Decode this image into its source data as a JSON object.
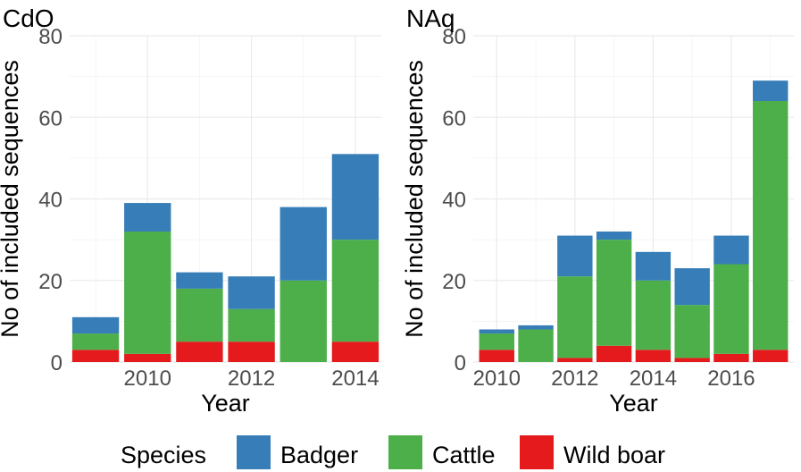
{
  "legend": {
    "title": "Species",
    "items": [
      {
        "label": "Badger",
        "color": "#377EB8"
      },
      {
        "label": "Cattle",
        "color": "#4DAF4A"
      },
      {
        "label": "Wild boar",
        "color": "#E41A1C"
      }
    ]
  },
  "chart_data": [
    {
      "type": "bar",
      "stacked": true,
      "title": "CdO",
      "xlabel": "Year",
      "ylabel": "No of included sequences",
      "ylim": [
        0,
        80
      ],
      "xlim": [
        2008.5,
        2014.5
      ],
      "yticks": [
        0,
        20,
        40,
        60,
        80
      ],
      "xticks": [
        2010,
        2012,
        2014
      ],
      "grid": true,
      "x": [
        2009,
        2010,
        2011,
        2012,
        2013,
        2014
      ],
      "series": [
        {
          "name": "Wild boar",
          "values": [
            3,
            2,
            5,
            5,
            0,
            5
          ]
        },
        {
          "name": "Cattle",
          "values": [
            4,
            30,
            13,
            8,
            20,
            25
          ]
        },
        {
          "name": "Badger",
          "values": [
            4,
            7,
            4,
            8,
            18,
            21
          ]
        }
      ]
    },
    {
      "type": "bar",
      "stacked": true,
      "title": "NAq",
      "xlabel": "Year",
      "ylabel": "No of included sequences",
      "ylim": [
        0,
        80
      ],
      "xlim": [
        2009.4,
        2017.6
      ],
      "yticks": [
        0,
        20,
        40,
        60,
        80
      ],
      "xticks": [
        2010,
        2012,
        2014,
        2016
      ],
      "grid": true,
      "x": [
        2010,
        2011,
        2012,
        2013,
        2014,
        2015,
        2016,
        2017
      ],
      "series": [
        {
          "name": "Wild boar",
          "values": [
            3,
            0,
            1,
            4,
            3,
            1,
            2,
            3
          ]
        },
        {
          "name": "Cattle",
          "values": [
            4,
            8,
            20,
            26,
            17,
            13,
            22,
            61
          ]
        },
        {
          "name": "Badger",
          "values": [
            1,
            1,
            10,
            2,
            7,
            9,
            7,
            5
          ]
        }
      ]
    }
  ]
}
